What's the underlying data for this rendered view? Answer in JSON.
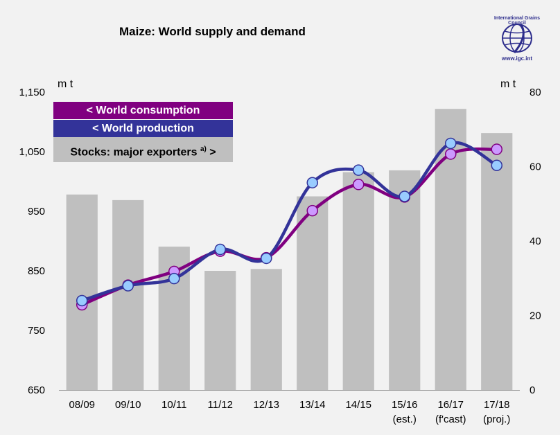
{
  "title": "Maize: World supply and demand",
  "logo": {
    "name": "International Grains Council",
    "url": "www.igc.int"
  },
  "units": {
    "left": "m t",
    "right": "m t"
  },
  "legend": {
    "consumption": "< World consumption",
    "production": "< World production",
    "stocks_text": "Stocks: major exporters ",
    "stocks_sup": "a)",
    "stocks_tail": " >"
  },
  "colors": {
    "background": "#f2f2f2",
    "consumption_line": "#800080",
    "consumption_marker": "#cc99ff",
    "production_line": "#333399",
    "production_marker": "#99ccff",
    "stocks_bar": "#bfbfbf"
  },
  "chart_data": {
    "type": "bar+line",
    "categories": [
      [
        "08/09"
      ],
      [
        "09/10"
      ],
      [
        "10/11"
      ],
      [
        "11/12"
      ],
      [
        "12/13"
      ],
      [
        "13/14"
      ],
      [
        "14/15"
      ],
      [
        "15/16",
        "(est.)"
      ],
      [
        "16/17",
        "(f'cast)"
      ],
      [
        "17/18",
        "(proj.)"
      ]
    ],
    "left_axis": {
      "ylim": [
        650,
        1150
      ],
      "ticks": [
        650,
        750,
        850,
        950,
        1050,
        1150
      ],
      "tick_labels": [
        "650",
        "750",
        "850",
        "950",
        "1,050",
        "1,150"
      ]
    },
    "right_axis": {
      "ylim": [
        0,
        80
      ],
      "ticks": [
        0,
        20,
        40,
        60,
        80
      ],
      "tick_labels": [
        "0",
        "20",
        "40",
        "60",
        "80"
      ]
    },
    "series": [
      {
        "name": "World consumption",
        "axis": "left",
        "kind": "line",
        "values": [
          793,
          826,
          849,
          883,
          872,
          951,
          995,
          974,
          1046,
          1054
        ]
      },
      {
        "name": "World production",
        "axis": "left",
        "kind": "line",
        "values": [
          800,
          825,
          837,
          886,
          871,
          998,
          1019,
          975,
          1064,
          1027
        ]
      },
      {
        "name": "Stocks: major exporters",
        "axis": "right",
        "kind": "bar",
        "values": [
          52.5,
          51,
          38.5,
          32,
          32.5,
          52,
          58.5,
          59,
          75.5,
          69
        ]
      }
    ],
    "grid": false,
    "legend_position": "top-left"
  }
}
